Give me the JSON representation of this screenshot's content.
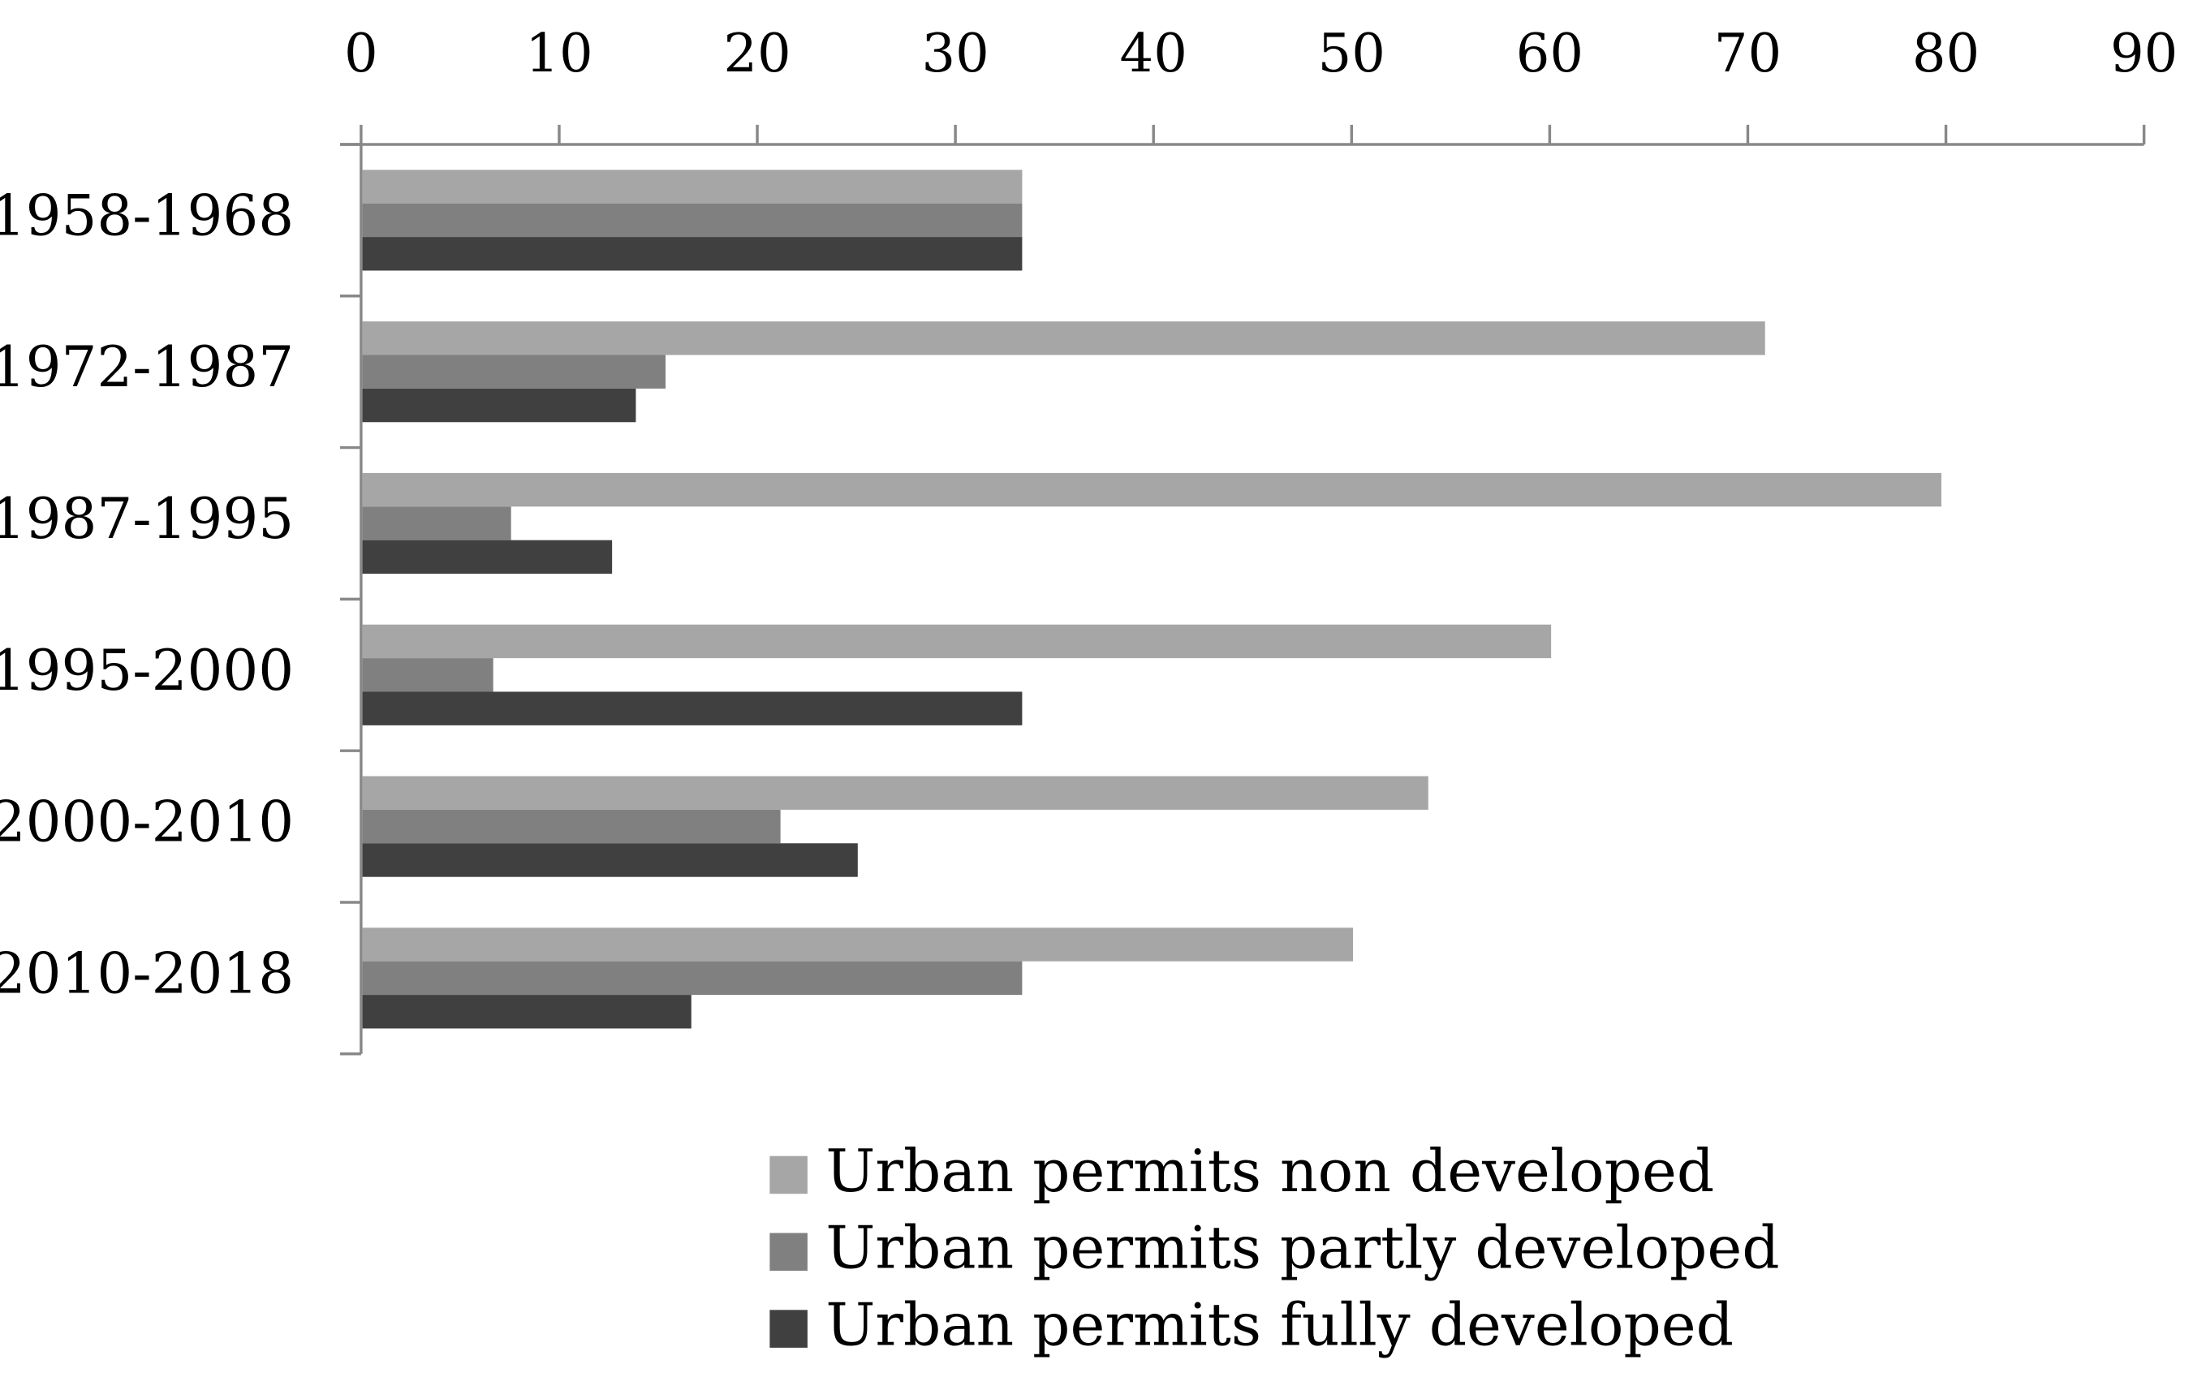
{
  "chart_data": {
    "type": "bar",
    "orientation": "horizontal",
    "axis_position": "top",
    "legend": "bottom",
    "categories": [
      "1958-1968",
      "1972-1987",
      "1987-1995",
      "1995-2000",
      "2000-2010",
      "2010-2018"
    ],
    "series": [
      {
        "name": "Urban permits non developed",
        "color": "#a6a6a6",
        "values": [
          33.3,
          70.8,
          79.7,
          60.0,
          53.8,
          50.0
        ]
      },
      {
        "name": "Urban permits partly developed",
        "color": "#808080",
        "values": [
          33.3,
          15.3,
          7.5,
          6.6,
          21.1,
          33.3
        ]
      },
      {
        "name": "Urban permits fully developed",
        "color": "#404040",
        "values": [
          33.3,
          13.8,
          12.6,
          33.3,
          25.0,
          16.6
        ]
      }
    ],
    "xlim": [
      0,
      90
    ],
    "xticks": [
      0,
      10,
      20,
      30,
      40,
      50,
      60,
      70,
      80,
      90
    ]
  }
}
